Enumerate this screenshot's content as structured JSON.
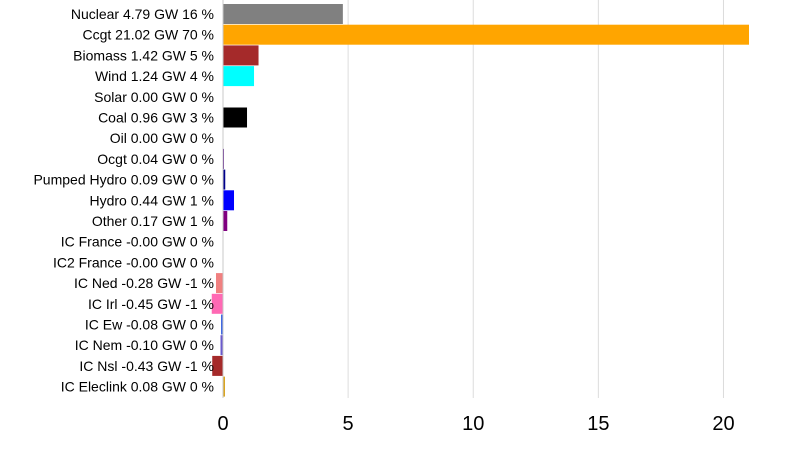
{
  "chart_data": {
    "type": "bar",
    "orientation": "horizontal",
    "grid": "vertical-major",
    "xlim": [
      0,
      22.5
    ],
    "xticks": [
      0,
      5,
      10,
      15,
      20
    ],
    "categories": [
      "Nuclear 4.79 GW 16 %",
      "Ccgt 21.02 GW 70 %",
      "Biomass 1.42 GW 5 %",
      "Wind 1.24 GW 4 %",
      "Solar 0.00 GW 0 %",
      "Coal 0.96 GW 3 %",
      "Oil 0.00 GW 0 %",
      "Ocgt 0.04 GW 0 %",
      "Pumped Hydro 0.09 GW 0 %",
      "Hydro 0.44 GW 1 %",
      "Other 0.17 GW 1 %",
      "IC France -0.00 GW 0 %",
      "IC2 France -0.00 GW 0 %",
      "IC Ned -0.28 GW -1 %",
      "IC Irl -0.45 GW -1 %",
      "IC Ew -0.08 GW 0 %",
      "IC Nem -0.10 GW 0 %",
      "IC Nsl -0.43 GW -1 %",
      "IC Eleclink 0.08 GW 0 %"
    ],
    "values": [
      4.79,
      21.02,
      1.42,
      1.24,
      0.0,
      0.96,
      0.0,
      0.04,
      0.09,
      0.44,
      0.17,
      0.0,
      0.0,
      -0.28,
      -0.45,
      -0.08,
      -0.1,
      -0.43,
      0.08
    ],
    "colors": [
      "#808080",
      "#ffa500",
      "#a52a2a",
      "#00ffff",
      "#ffff00",
      "#000000",
      "#808000",
      "#4b0082",
      "#00008b",
      "#0000ff",
      "#800080",
      "#1e90ff",
      "#0066cc",
      "#f08080",
      "#ff69b4",
      "#4169e1",
      "#6a5acd",
      "#a52a2a",
      "#daa520"
    ]
  }
}
